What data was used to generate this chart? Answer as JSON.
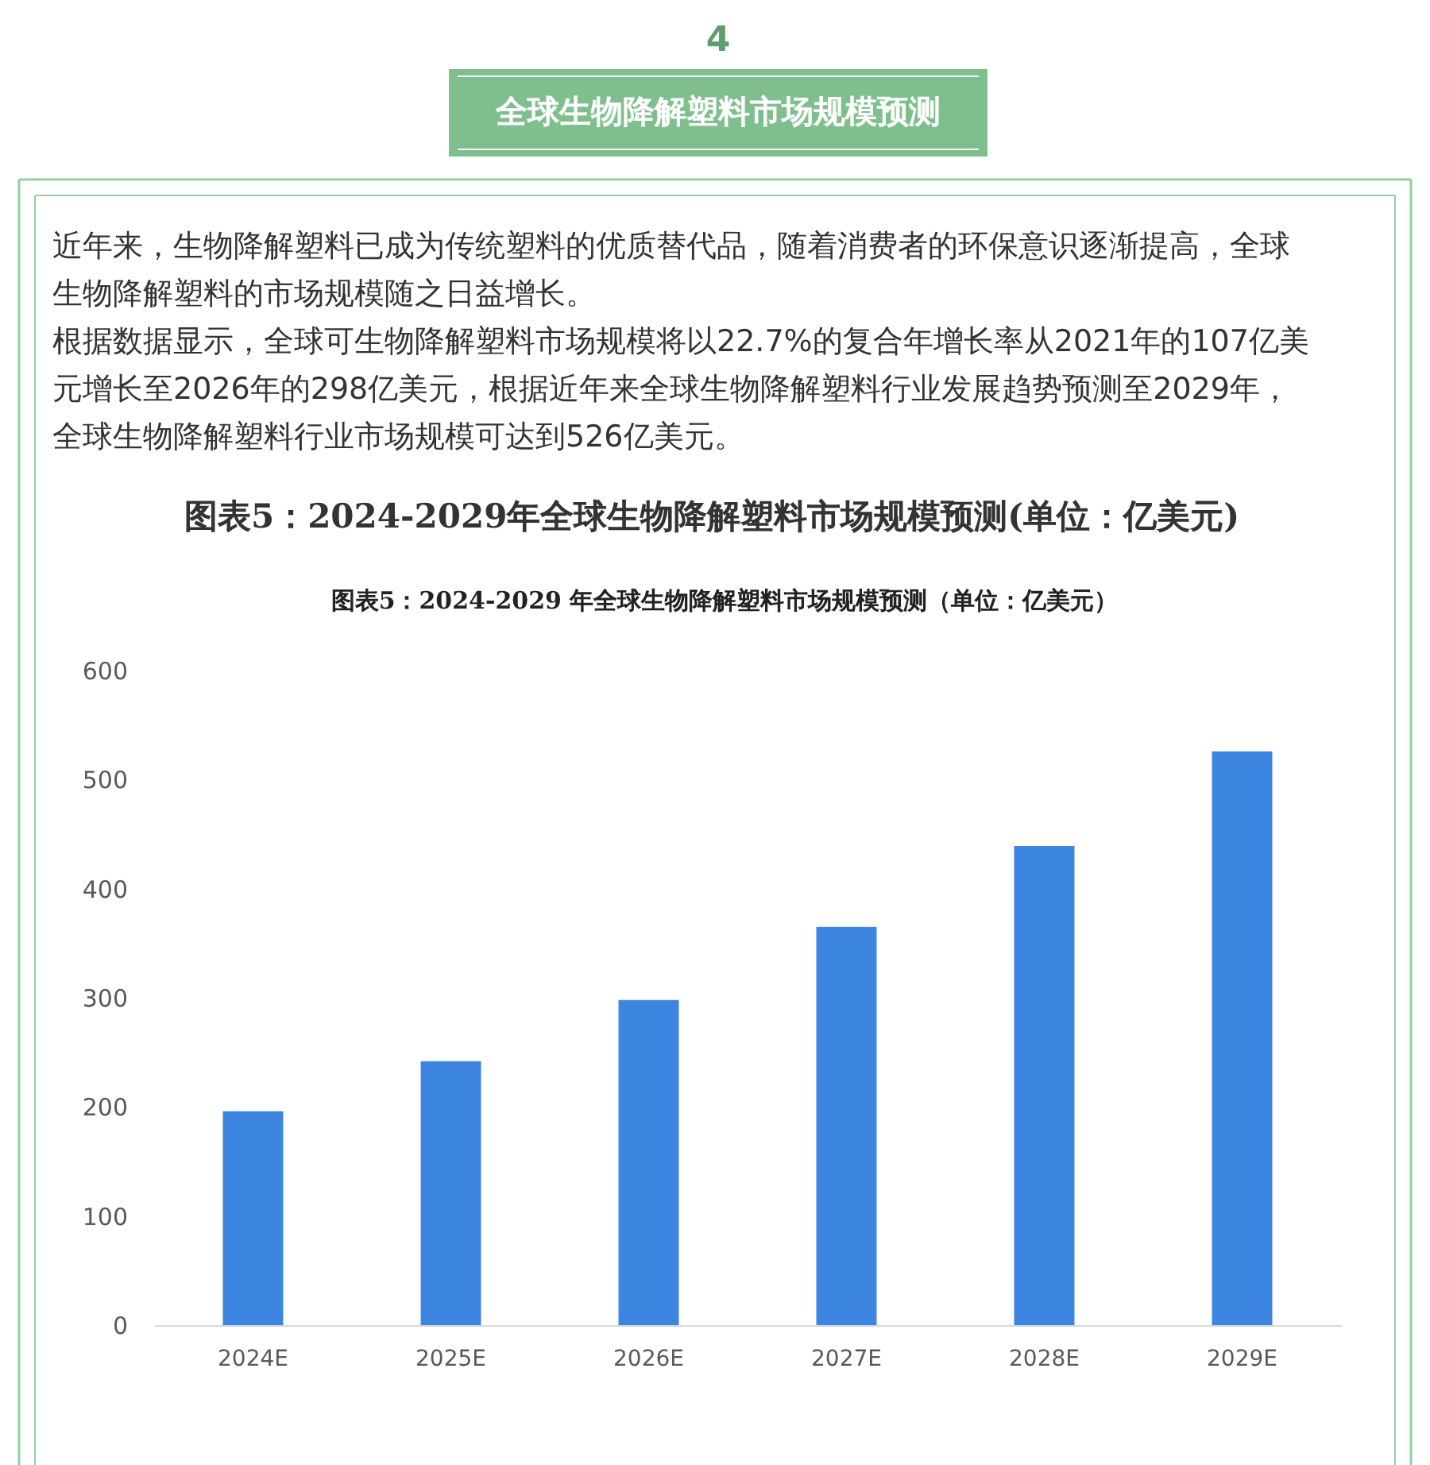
{
  "chart_data": {
    "type": "bar",
    "title": "图表5：2024-2029年全球生物降解塑料市场规模预测(单位：亿美元)",
    "subtitle": "图表5：2024-2029 年全球生物降解塑料市场规模预测（单位：亿美元）",
    "annotations": [
      "4",
      "全球生物降解塑料市场规模预测",
      "近年来，生物降解塑料已成为传统塑料的优质替代品，随着消费者的环保意识逐渐提高，全球生物降解塑料的市场规模随之日益增长。",
      "根据数据显示，全球可生物降解塑料市场规模将以22.7%的复合年增长率从2021年的107亿美元增长至2026年的298亿美元，根据近年来全球生物降解塑料行业发展趋势预测至2029年，全球生物降解塑料行业市场规模可达到526亿美元。"
    ],
    "categories": [
      "2024E",
      "2025E",
      "2026E",
      "2027E",
      "2028E",
      "2029E"
    ],
    "values": [
      196,
      242,
      298,
      365,
      439,
      526
    ],
    "color": "#3c85e1",
    "ylim": [
      0,
      600
    ],
    "yticks": [
      0,
      100,
      200,
      300,
      400,
      500,
      600
    ]
  }
}
